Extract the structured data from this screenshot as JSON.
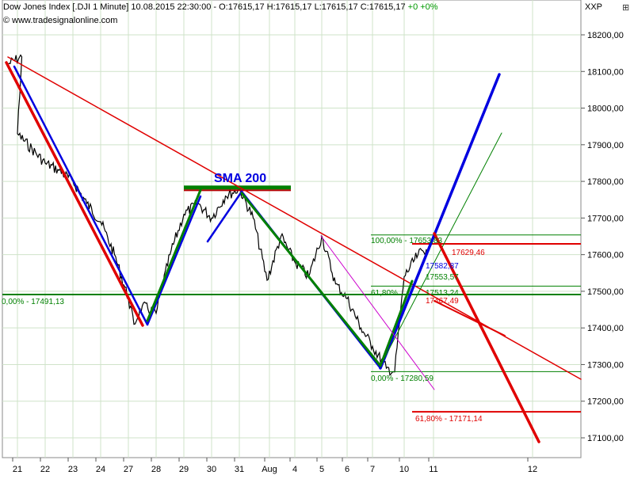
{
  "header": {
    "line1": "Dow Jones Index [.DJI  1 Minute] 10.08.2015 22:30:00 - O:17615,17 H:17615,17 L:17615,17 C:17615,17",
    "change": "+0 +0%",
    "line2": "© www.tradesignalonline.com",
    "symbol": "XXP"
  },
  "colors": {
    "price": "#000000",
    "red": "#e00000",
    "blue": "#0000e0",
    "green": "#008000",
    "magenta": "#cc00cc",
    "grid": "#cfe3c9"
  },
  "chart_data": {
    "type": "line",
    "title": "Dow Jones Index [.DJI 1 Minute]",
    "x_ticks": [
      "21",
      "22",
      "23",
      "24",
      "27",
      "28",
      "29",
      "30",
      "31",
      "Aug",
      "4",
      "5",
      "6",
      "7",
      "10",
      "11",
      "12"
    ],
    "y_ticks": [
      "18200,00",
      "18100,00",
      "18000,00",
      "17900,00",
      "17800,00",
      "17700,00",
      "17600,00",
      "17500,00",
      "17400,00",
      "17300,00",
      "17200,00",
      "17100,00"
    ],
    "ylim": [
      17030,
      18265
    ],
    "price_series": {
      "name": "Dow Jones Index",
      "points": [
        [
          "Jul 20",
          18120
        ],
        [
          "Jul 20.5",
          18140
        ],
        [
          "Jul 21",
          17930
        ],
        [
          "Jul 22",
          17850
        ],
        [
          "Jul 22.5",
          17830
        ],
        [
          "Jul 23",
          17800
        ],
        [
          "Jul 23.5",
          17740
        ],
        [
          "Jul 24",
          17690
        ],
        [
          "Jul 24.5",
          17600
        ],
        [
          "Jul 27",
          17480
        ],
        [
          "Jul 27.2",
          17410
        ],
        [
          "Jul 27.5",
          17460
        ],
        [
          "Jul 28",
          17440
        ],
        [
          "Jul 28.5",
          17600
        ],
        [
          "Jul 29",
          17710
        ],
        [
          "Jul 29.5",
          17740
        ],
        [
          "Jul 30",
          17700
        ],
        [
          "Jul 30.5",
          17760
        ],
        [
          "Jul 31",
          17780
        ],
        [
          "Jul 31.5",
          17700
        ],
        [
          "Aug 3",
          17530
        ],
        [
          "Aug 3.5",
          17650
        ],
        [
          "Aug 4",
          17580
        ],
        [
          "Aug 4.5",
          17540
        ],
        [
          "Aug 5",
          17650
        ],
        [
          "Aug 5.5",
          17520
        ],
        [
          "Aug 6",
          17480
        ],
        [
          "Aug 6.5",
          17400
        ],
        [
          "Aug 7",
          17350
        ],
        [
          "Aug 7.5",
          17290
        ],
        [
          "Aug 7.8",
          17280
        ],
        [
          "Aug 10",
          17540
        ],
        [
          "Aug 10.5",
          17600
        ],
        [
          "Aug 10.8",
          17615
        ]
      ]
    },
    "fibonacci_levels": [
      {
        "label": "100,00% - 17653,83",
        "value": 17653.83,
        "color": "green"
      },
      {
        "label": "61,80%",
        "value": 17514.0,
        "color": "green"
      },
      {
        "label": "0,00% - 17491,13",
        "value": 17491.13,
        "color": "green"
      },
      {
        "label": "0,00% - 17280,59",
        "value": 17280.59,
        "color": "green"
      },
      {
        "label": "61,80% - 17171,14",
        "value": 17171.14,
        "color": "red"
      },
      {
        "label": "17629,46",
        "value": 17629.46,
        "color": "red"
      }
    ],
    "annotations": [
      {
        "text": "SMA 200",
        "value": 17780
      },
      {
        "text": "17582,87",
        "value": 17582.87
      },
      {
        "text": "17553,57",
        "value": 17553.57
      },
      {
        "text": "17467,49",
        "value": 17467.49
      },
      {
        "text": "17513,24",
        "value": 17513.24
      }
    ]
  }
}
